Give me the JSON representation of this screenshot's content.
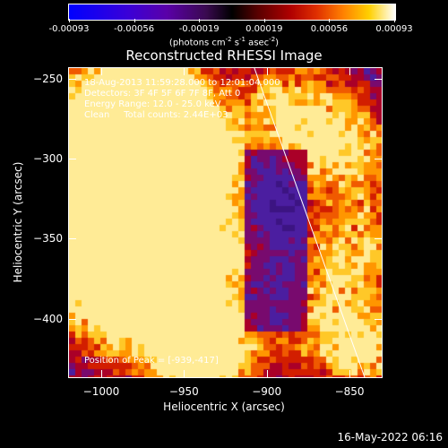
{
  "colorbar": {
    "tick_labels": [
      "-0.00093",
      "-0.00056",
      "-0.00019",
      "0.00019",
      "0.00056",
      "0.00093"
    ],
    "units_parts": [
      "(photons cm",
      "-2",
      " s",
      "-1",
      " asec",
      "-2",
      ")"
    ],
    "colors": [
      "#0000ff",
      "#5a00a8",
      "#000000",
      "#b00000",
      "#ff8000",
      "#ffffff"
    ]
  },
  "plot": {
    "title": "Reconstructed RHESSI Image",
    "info_lines": [
      "18-Aug-2013 11:59:28.000 to 12:01:04.000",
      "Detectors: 3F 4F 5F 6F 7F 8F, Att 0",
      "Energy Range: 12.0 - 25.0 keV",
      "Clean     Total counts: 2.44E+03"
    ],
    "peak_label": "Position of Peak = [-939,-417]",
    "xlabel": "Heliocentric X (arcsec)",
    "ylabel": "Heliocentric Y (arcsec)",
    "x_range": [
      -1020,
      -830
    ],
    "y_range": [
      -437,
      -243
    ],
    "x_ticks": [
      -1000,
      -950,
      -900,
      -850
    ],
    "x_tick_labels": [
      "−1000",
      "−950",
      "−900",
      "−850"
    ],
    "y_ticks": [
      -250,
      -300,
      -350,
      -400
    ],
    "y_tick_labels": [
      "−250",
      "−300",
      "−350",
      "−400"
    ],
    "limb_points": [
      [
        -908,
        -243
      ],
      [
        -841,
        -437
      ]
    ]
  },
  "footer": {
    "date": "16-May-2022 06:16"
  }
}
